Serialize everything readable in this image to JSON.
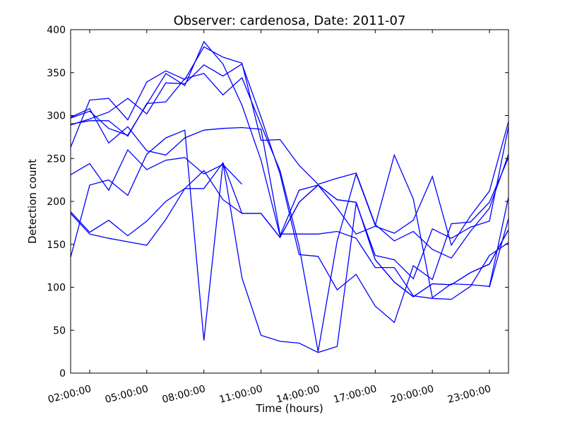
{
  "chart_data": {
    "type": "line",
    "title": "Observer: cardenosa, Date: 2011-07",
    "xlabel": "Time (hours)",
    "ylabel": "Detection count",
    "xlim": [
      1,
      24
    ],
    "ylim": [
      0,
      400
    ],
    "xticks": [
      2,
      5,
      8,
      11,
      14,
      17,
      20,
      23
    ],
    "xtick_labels": [
      "02:00:00",
      "05:00:00",
      "08:00:00",
      "11:00:00",
      "14:00:00",
      "17:00:00",
      "20:00:00",
      "23:00:00"
    ],
    "yticks": [
      0,
      50,
      100,
      150,
      200,
      250,
      300,
      350,
      400
    ],
    "ytick_labels": [
      "0",
      "50",
      "100",
      "150",
      "200",
      "250",
      "300",
      "350",
      "400"
    ],
    "grid": false,
    "line_color": "#0000ff",
    "series": [
      {
        "x": [
          1,
          2,
          3,
          4,
          5,
          6,
          7,
          8,
          9,
          10,
          11,
          12,
          13,
          14,
          15,
          16,
          17,
          18,
          19,
          20,
          21,
          22,
          23,
          24
        ],
        "values": [
          297,
          305,
          285,
          277,
          313,
          349,
          335,
          386,
          360,
          312,
          248,
          160,
          213,
          219,
          192,
          162,
          171,
          163,
          178,
          229,
          149,
          183,
          212,
          293
        ]
      },
      {
        "x": [
          1,
          2,
          3,
          4,
          5,
          6,
          7,
          8,
          9,
          10,
          11,
          12,
          13,
          14,
          15,
          16,
          17,
          18,
          19,
          20,
          21,
          22,
          23,
          24
        ],
        "values": [
          263,
          318,
          320,
          295,
          339,
          352,
          342,
          380,
          368,
          361,
          271,
          272,
          242,
          220,
          227,
          233,
          173,
          154,
          165,
          144,
          134,
          165,
          192,
          255
        ]
      },
      {
        "x": [
          1,
          2,
          3,
          4,
          5,
          6,
          7,
          8,
          9,
          10,
          11,
          12,
          13,
          14,
          15,
          16,
          17,
          18,
          19,
          20,
          21,
          22,
          23,
          24
        ],
        "values": [
          289,
          296,
          304,
          320,
          302,
          338,
          337,
          359,
          346,
          360,
          298,
          232,
          138,
          136,
          97,
          115,
          78,
          59,
          125,
          109,
          174,
          176,
          199,
          251
        ]
      },
      {
        "x": [
          1,
          2,
          3,
          4,
          5,
          6,
          7,
          8,
          9,
          10,
          11,
          12,
          13,
          14,
          15,
          16,
          17,
          18,
          19,
          20,
          21,
          22,
          23,
          24
        ],
        "values": [
          290,
          294,
          294,
          276,
          314,
          316,
          343,
          349,
          324,
          344,
          289,
          236,
          148,
          25,
          154,
          232,
          172,
          254,
          203,
          88,
          104,
          103,
          101,
          205
        ]
      },
      {
        "x": [
          1,
          2,
          3,
          4,
          5,
          6,
          7,
          8,
          9,
          10,
          11,
          12,
          13,
          14,
          15,
          16,
          17,
          18,
          19,
          20,
          21,
          22,
          23,
          24
        ],
        "values": [
          298,
          308,
          268,
          287,
          259,
          254,
          274,
          283,
          285,
          286,
          284,
          162,
          162,
          162,
          165,
          157,
          123,
          123,
          90,
          87,
          86,
          101,
          137,
          152
        ]
      },
      {
        "x": [
          1,
          2,
          3,
          4,
          5,
          6,
          7,
          8,
          9,
          10
        ],
        "values": [
          231,
          244,
          213,
          260,
          237,
          248,
          251,
          232,
          243,
          220
        ]
      },
      {
        "x": [
          1,
          2,
          3,
          4,
          5,
          6,
          7,
          8,
          9,
          10,
          11,
          12,
          13,
          14,
          15,
          16,
          17,
          18,
          19,
          20,
          21,
          22,
          23,
          24
        ],
        "values": [
          135,
          219,
          225,
          207,
          255,
          274,
          283,
          38,
          245,
          111,
          44,
          37,
          35,
          24,
          31,
          198,
          137,
          132,
          110,
          168,
          157,
          170,
          177,
          287
        ]
      },
      {
        "x": [
          1,
          2,
          3,
          4,
          5,
          6,
          7,
          8,
          9,
          10,
          11,
          12,
          13,
          14,
          15,
          16,
          17,
          18,
          19,
          20,
          21,
          22,
          23,
          24
        ],
        "values": [
          188,
          164,
          178,
          160,
          177,
          200,
          215,
          236,
          202,
          186,
          186,
          158,
          199,
          219,
          202,
          199,
          132,
          106,
          89,
          104,
          103,
          117,
          127,
          167
        ]
      },
      {
        "x": [
          1,
          2,
          3,
          4,
          5,
          6,
          7,
          8,
          9,
          10,
          11,
          12,
          13,
          14,
          15,
          16,
          17,
          18,
          19,
          20,
          21,
          22,
          23,
          24
        ],
        "values": [
          186,
          162,
          157,
          153,
          149,
          179,
          215,
          215,
          245,
          186,
          186,
          158,
          199,
          219,
          202,
          199,
          132,
          106,
          89,
          104,
          103,
          117,
          127,
          167
        ]
      },
      {
        "x": [
          23,
          24
        ],
        "values": [
          100,
          180
        ]
      }
    ]
  }
}
